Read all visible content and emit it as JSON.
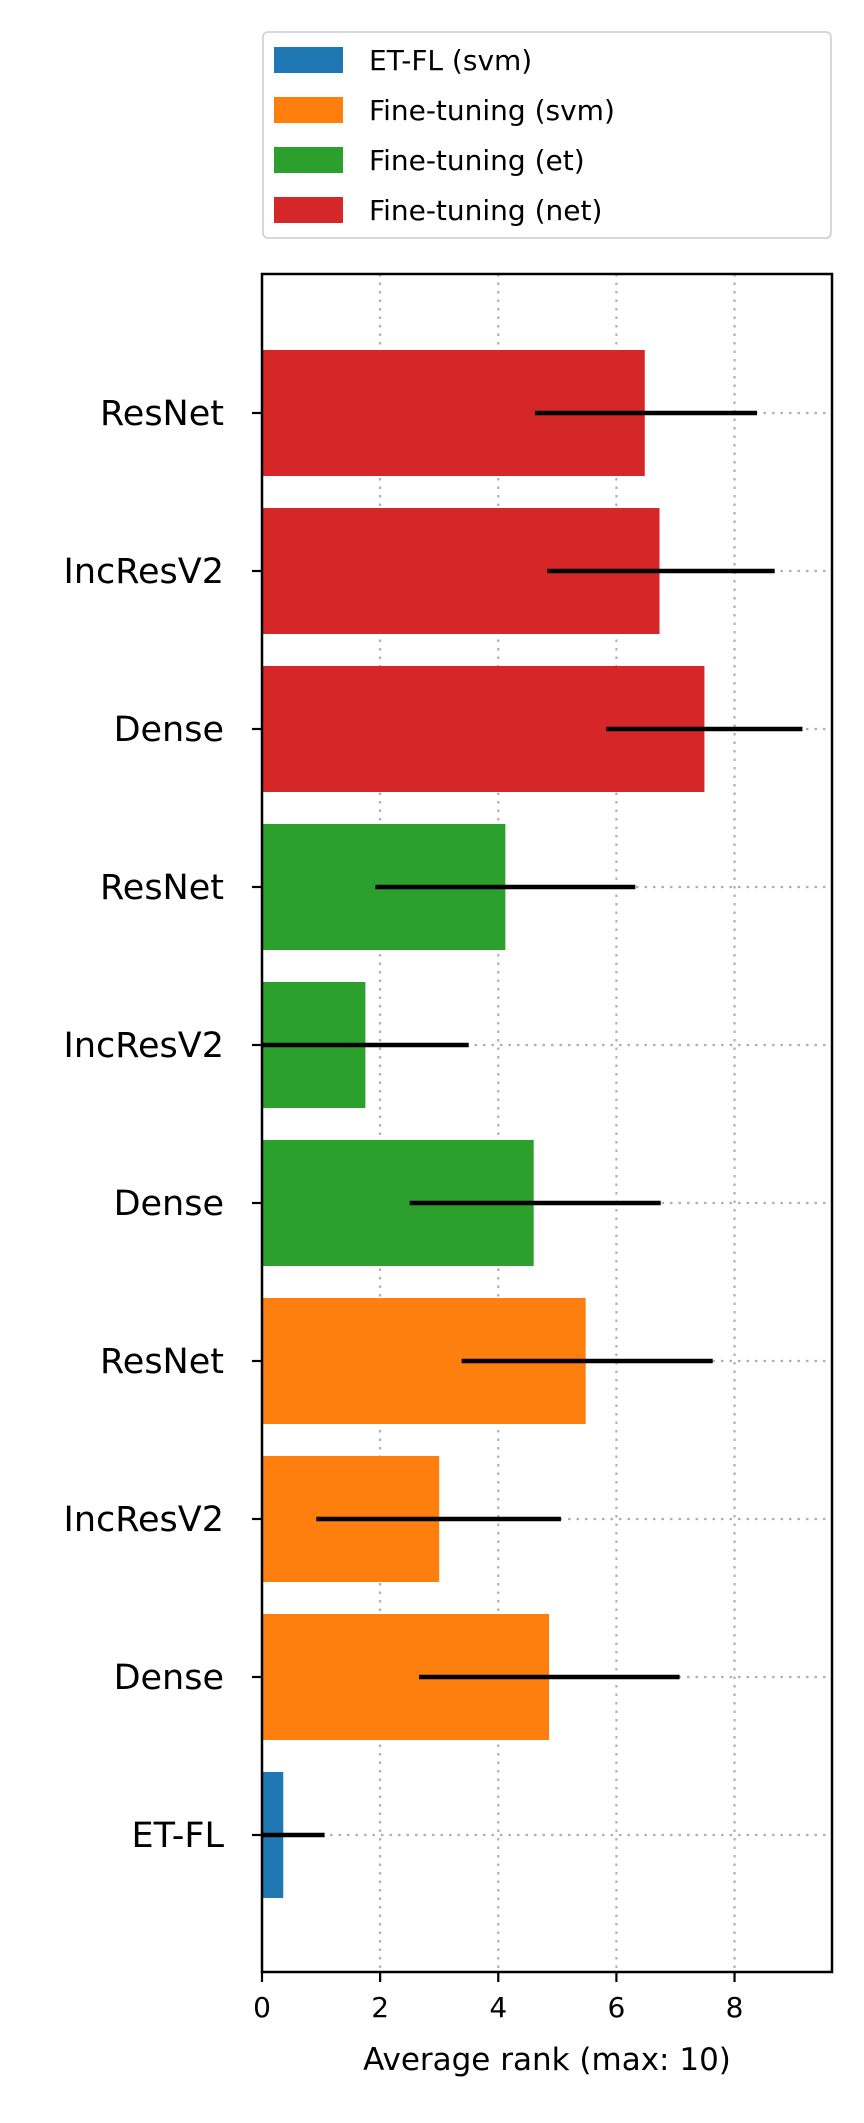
{
  "chart_data": {
    "type": "bar",
    "orientation": "horizontal",
    "title": "",
    "xlabel": "Average rank (max: 10)",
    "ylabel": "",
    "xlim": [
      0,
      9.65
    ],
    "xticks": [
      "0",
      "2",
      "4",
      "6",
      "8"
    ],
    "grid": true,
    "legend_placement": "top",
    "legend": [
      {
        "name": "ET-FL (svm)",
        "color": "#1f77b4"
      },
      {
        "name": "Fine-tuning (svm)",
        "color": "#ff7f0e"
      },
      {
        "name": "Fine-tuning (et)",
        "color": "#2ca02c"
      },
      {
        "name": "Fine-tuning (net)",
        "color": "#d62728"
      }
    ],
    "bars": [
      {
        "label": "ResNet",
        "series": "Fine-tuning (net)",
        "value": 6.48,
        "err_low": 4.62,
        "err_high": 8.38,
        "color": "#d62728"
      },
      {
        "label": "IncResV2",
        "series": "Fine-tuning (net)",
        "value": 6.73,
        "err_low": 4.83,
        "err_high": 8.68,
        "color": "#d62728"
      },
      {
        "label": "Dense",
        "series": "Fine-tuning (net)",
        "value": 7.49,
        "err_low": 5.83,
        "err_high": 9.15,
        "color": "#d62728"
      },
      {
        "label": "ResNet",
        "series": "Fine-tuning (et)",
        "value": 4.12,
        "err_low": 1.92,
        "err_high": 6.32,
        "color": "#2ca02c"
      },
      {
        "label": "IncResV2",
        "series": "Fine-tuning (et)",
        "value": 1.75,
        "err_low": 0.0,
        "err_high": 3.5,
        "color": "#2ca02c"
      },
      {
        "label": "Dense",
        "series": "Fine-tuning (et)",
        "value": 4.6,
        "err_low": 2.5,
        "err_high": 6.75,
        "color": "#2ca02c"
      },
      {
        "label": "ResNet",
        "series": "Fine-tuning (svm)",
        "value": 5.48,
        "err_low": 3.38,
        "err_high": 7.63,
        "color": "#ff7f0e"
      },
      {
        "label": "IncResV2",
        "series": "Fine-tuning (svm)",
        "value": 3.0,
        "err_low": 0.92,
        "err_high": 5.06,
        "color": "#ff7f0e"
      },
      {
        "label": "Dense",
        "series": "Fine-tuning (svm)",
        "value": 4.86,
        "err_low": 2.66,
        "err_high": 7.07,
        "color": "#ff7f0e"
      },
      {
        "label": "ET-FL",
        "series": "ET-FL (svm)",
        "value": 0.36,
        "err_low": 0.0,
        "err_high": 1.06,
        "color": "#1f77b4"
      }
    ]
  }
}
